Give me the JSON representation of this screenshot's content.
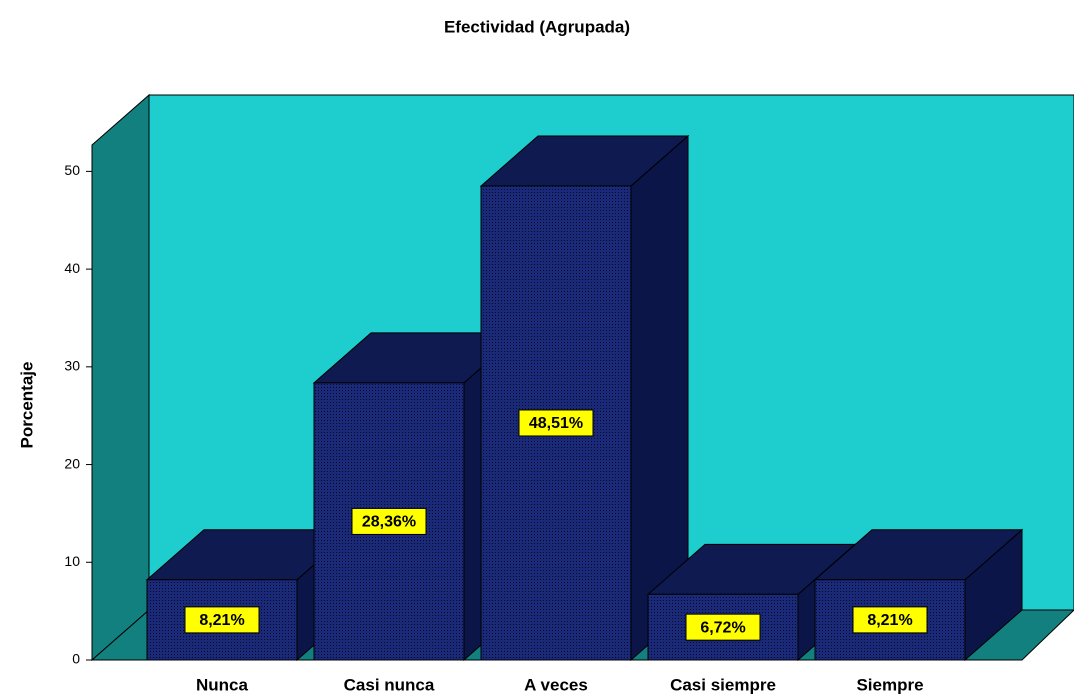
{
  "chart_data": {
    "type": "bar3d",
    "title": "Efectividad (Agrupada)",
    "y_label": "Porcentaje",
    "categories": [
      "Nunca",
      "Casi nunca",
      "A veces",
      "Casi siempre",
      "Siempre"
    ],
    "values": [
      8.21,
      28.36,
      48.51,
      6.72,
      8.21
    ],
    "value_labels": [
      "8,21%",
      "28,36%",
      "48,51%",
      "6,72%",
      "8,21%"
    ],
    "color": "#141f5c",
    "wall_color": "#1ecdcd",
    "ylim": [
      0,
      52.7
    ],
    "yticks": [
      0,
      10,
      20,
      30,
      40,
      50
    ]
  }
}
